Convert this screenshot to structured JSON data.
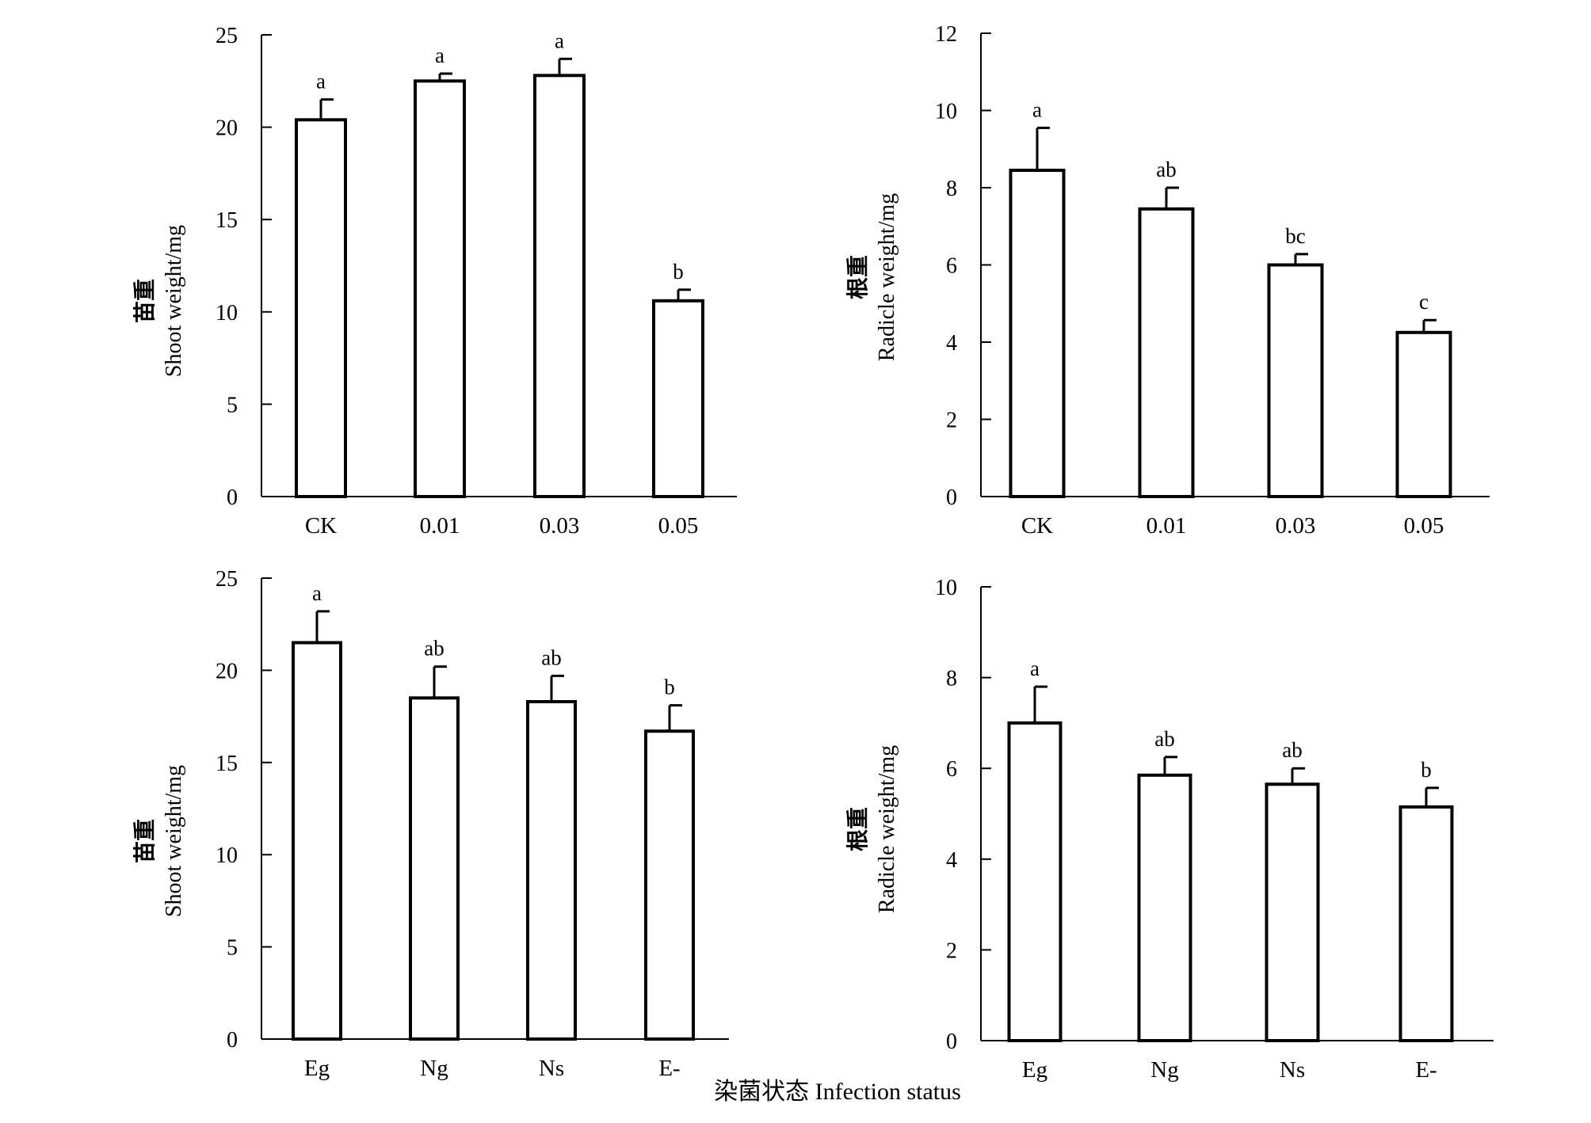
{
  "figure": {
    "xlabel": "染菌状态 Infection status"
  },
  "chart_data": [
    {
      "type": "bar",
      "ylabel_cn": "苗重",
      "ylabel_en": "Shoot weight/mg",
      "categories": [
        "CK",
        "0.01",
        "0.03",
        "0.05"
      ],
      "values": [
        20.4,
        22.5,
        22.8,
        10.6
      ],
      "errors": [
        1.1,
        0.4,
        0.9,
        0.6
      ],
      "significance": [
        "a",
        "a",
        "a",
        "b"
      ],
      "ylim": [
        0,
        25
      ],
      "yticks": [
        0,
        5,
        10,
        15,
        20,
        25
      ]
    },
    {
      "type": "bar",
      "ylabel_cn": "根重",
      "ylabel_en": "Radicle weight/mg",
      "categories": [
        "CK",
        "0.01",
        "0.03",
        "0.05"
      ],
      "values": [
        8.45,
        7.45,
        6.0,
        4.25
      ],
      "errors": [
        1.1,
        0.55,
        0.28,
        0.32
      ],
      "significance": [
        "a",
        "ab",
        "bc",
        "c"
      ],
      "ylim": [
        0,
        12
      ],
      "yticks": [
        0,
        2,
        4,
        6,
        8,
        10,
        12
      ]
    },
    {
      "type": "bar",
      "ylabel_cn": "苗重",
      "ylabel_en": "Shoot weight/mg",
      "categories": [
        "Eg",
        "Ng",
        "Ns",
        "E-"
      ],
      "values": [
        21.5,
        18.5,
        18.3,
        16.7
      ],
      "errors": [
        1.7,
        1.7,
        1.4,
        1.4
      ],
      "significance": [
        "a",
        "ab",
        "ab",
        "b"
      ],
      "ylim": [
        0,
        25
      ],
      "yticks": [
        0,
        5,
        10,
        15,
        20,
        25
      ]
    },
    {
      "type": "bar",
      "ylabel_cn": "根重",
      "ylabel_en": "Radicle weight/mg",
      "categories": [
        "Eg",
        "Ng",
        "Ns",
        "E-"
      ],
      "values": [
        7.0,
        5.85,
        5.65,
        5.15
      ],
      "errors": [
        0.8,
        0.4,
        0.35,
        0.42
      ],
      "significance": [
        "a",
        "ab",
        "ab",
        "b"
      ],
      "ylim": [
        0,
        10
      ],
      "yticks": [
        0,
        2,
        4,
        6,
        8,
        10
      ]
    }
  ]
}
